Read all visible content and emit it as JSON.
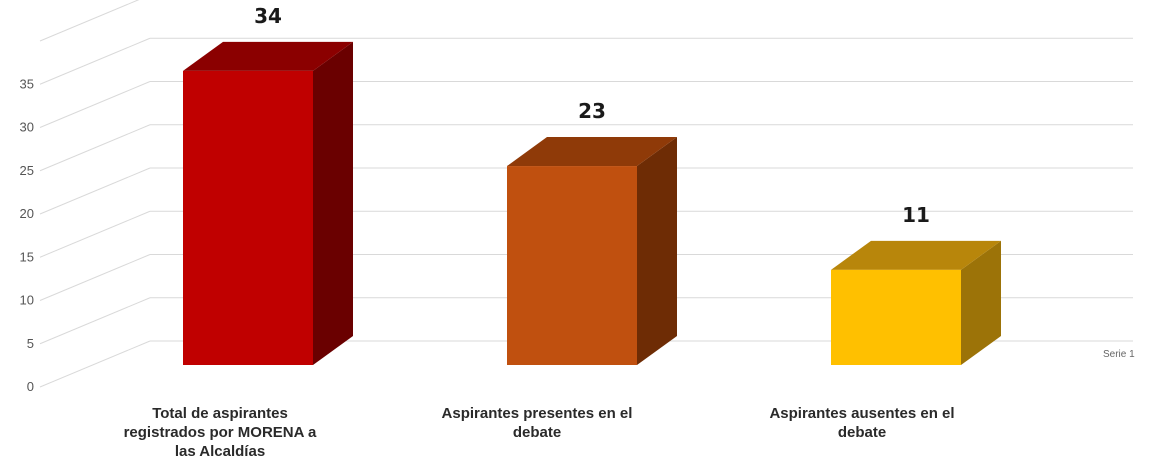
{
  "chart_data": {
    "type": "bar",
    "categories": [
      "Total de aspirantes registrados por MORENA a las Alcaldías",
      "Aspirantes presentes en el debate",
      "Aspirantes ausentes en el debate"
    ],
    "category_lines": [
      [
        "Total de aspirantes",
        "registrados por MORENA a",
        "las Alcaldías"
      ],
      [
        "Aspirantes presentes en el",
        "debate"
      ],
      [
        "Aspirantes ausentes en el",
        "debate"
      ]
    ],
    "series": [
      {
        "name": "Serie 1",
        "values": [
          34,
          23,
          11
        ]
      }
    ],
    "data_labels": [
      "34",
      "23",
      "11"
    ],
    "yticks": [
      0,
      5,
      10,
      15,
      20,
      25,
      30,
      35
    ],
    "ylim": [
      0,
      40
    ],
    "grid": true,
    "style": "3d-columns",
    "colors": {
      "bars": [
        {
          "front": "#c00000",
          "top": "#8b0000",
          "side": "#6a0000"
        },
        {
          "front": "#c0500f",
          "top": "#8f3a08",
          "side": "#6e2c05"
        },
        {
          "front": "#ffc000",
          "top": "#b8860b",
          "side": "#9c7308"
        }
      ],
      "grid": "#d9d9d9",
      "axis_text": "#555555"
    }
  }
}
